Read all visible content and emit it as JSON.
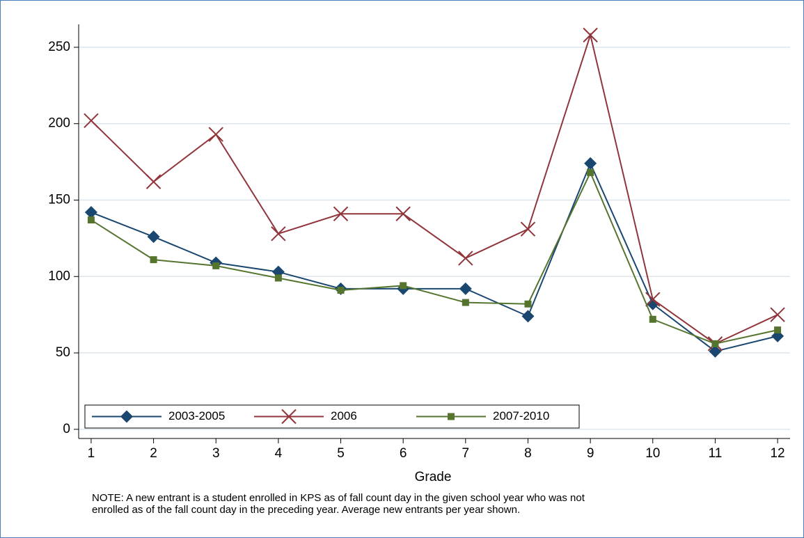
{
  "chart_data": {
    "type": "line",
    "x_label": "Grade",
    "note": [
      "NOTE: A new entrant is a student enrolled in KPS as of fall count day in the given school year who was not",
      "enrolled as of the fall count day in the preceding year. Average new entrants per year shown."
    ],
    "x": [
      1,
      2,
      3,
      4,
      5,
      6,
      7,
      8,
      9,
      10,
      11,
      12
    ],
    "series": [
      {
        "name": "2003-2005",
        "color": "#1a476f",
        "marker": "diamond",
        "values": [
          142,
          126,
          109,
          103,
          92,
          92,
          92,
          74,
          174,
          82,
          51,
          61
        ]
      },
      {
        "name": "2006",
        "color": "#90353b",
        "marker": "x",
        "values": [
          202,
          162,
          193,
          128,
          141,
          141,
          112,
          131,
          258,
          85,
          56,
          75
        ]
      },
      {
        "name": "2007-2010",
        "color": "#55752f",
        "marker": "square",
        "values": [
          137,
          111,
          107,
          99,
          91,
          94,
          83,
          82,
          168,
          72,
          56,
          65
        ]
      }
    ],
    "xlim": [
      0.8,
      12.2
    ],
    "xticks": [
      1,
      2,
      3,
      4,
      5,
      6,
      7,
      8,
      9,
      10,
      11,
      12
    ],
    "ylim": [
      -6,
      265
    ],
    "yticks": [
      0,
      50,
      100,
      150,
      200,
      250
    ],
    "grid": true,
    "legend": "bottom-left"
  }
}
